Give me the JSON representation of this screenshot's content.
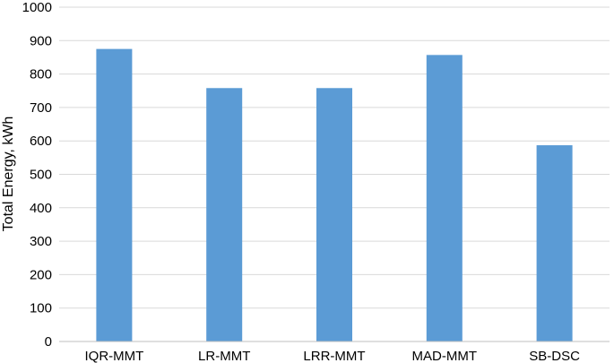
{
  "chart_data": {
    "type": "bar",
    "title": "",
    "xlabel": "",
    "ylabel": "Total Energy, kWh",
    "categories": [
      "IQR-MMT",
      "LR-MMT",
      "LRR-MMT",
      "MAD-MMT",
      "SB-DSC"
    ],
    "values": [
      875,
      758,
      758,
      857,
      587
    ],
    "ylim": [
      0,
      1000
    ],
    "yticks": [
      0,
      100,
      200,
      300,
      400,
      500,
      600,
      700,
      800,
      900,
      1000
    ],
    "grid": true,
    "legend": "none",
    "colors": {
      "bar": "#5B9BD5",
      "grid": "#D9D9D9",
      "axis": "#BFBFBF"
    }
  }
}
